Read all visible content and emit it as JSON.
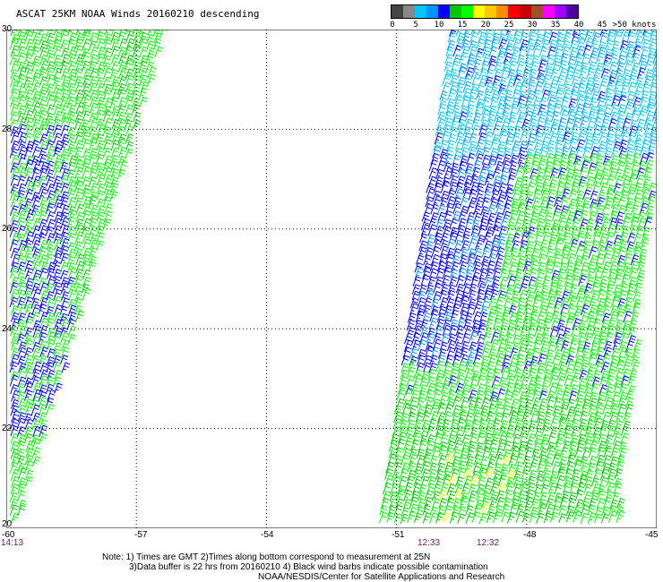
{
  "title": "ASCAT 25KM NOAA Winds 20160210 descending",
  "legend": {
    "labels": [
      "0",
      "5",
      "10",
      "15",
      "20",
      "25",
      "30",
      "35",
      "40",
      "45",
      ">50 knots"
    ],
    "colors": [
      "#444444",
      "#888888",
      "#00c8ff",
      "#0096ff",
      "#0000ff",
      "#00c800",
      "#00ff00",
      "#ffff00",
      "#ffc800",
      "#ff8c00",
      "#ff0000",
      "#c80000",
      "#a05028",
      "#ff00ff",
      "#a000ff",
      "#5000a0"
    ]
  },
  "map": {
    "lon_labels": [
      "-60",
      "-57",
      "-54",
      "-51",
      "-48",
      "-45"
    ],
    "lat_labels": [
      "30",
      "28",
      "26",
      "24",
      "22",
      "20"
    ],
    "lon_range": [
      -60,
      -45
    ],
    "lat_range": [
      20,
      30
    ],
    "grid": "dotted",
    "pass_times": [
      "14:13",
      "12:33",
      "12:32"
    ]
  },
  "notes": [
    "Note: 1) Times are GMT 2)Times along bottom correspond to measurement at 25N",
    "3)Data buffer is 22 hrs from 20160210 4) Black wind barbs indicate possible contamination",
    "NOAA/NESDIS/Center for Satellite Applications and Research"
  ]
}
